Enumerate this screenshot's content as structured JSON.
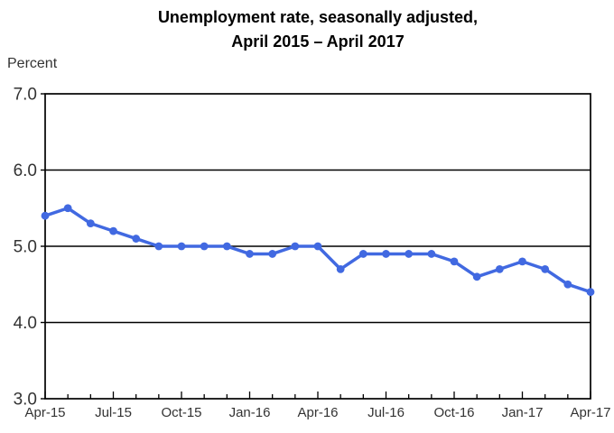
{
  "chart_data": {
    "type": "line",
    "title_line1": "Unemployment rate, seasonally adjusted,",
    "title_line2": "April 2015 – April 2017",
    "ylabel": "Percent",
    "x": [
      "Apr-15",
      "May-15",
      "Jun-15",
      "Jul-15",
      "Aug-15",
      "Sep-15",
      "Oct-15",
      "Nov-15",
      "Dec-15",
      "Jan-16",
      "Feb-16",
      "Mar-16",
      "Apr-16",
      "May-16",
      "Jun-16",
      "Jul-16",
      "Aug-16",
      "Sep-16",
      "Oct-16",
      "Nov-16",
      "Dec-16",
      "Jan-17",
      "Feb-17",
      "Mar-17",
      "Apr-17"
    ],
    "values": [
      5.4,
      5.5,
      5.3,
      5.2,
      5.1,
      5.0,
      5.0,
      5.0,
      5.0,
      4.9,
      4.9,
      5.0,
      5.0,
      4.7,
      4.9,
      4.9,
      4.9,
      4.9,
      4.8,
      4.6,
      4.7,
      4.8,
      4.7,
      4.5,
      4.4
    ],
    "x_tick_labels": [
      "Apr-15",
      "Jul-15",
      "Oct-15",
      "Jan-16",
      "Apr-16",
      "Jul-16",
      "Oct-16",
      "Jan-17",
      "Apr-17"
    ],
    "x_tick_label_step": 3,
    "y_ticks": [
      7.0,
      6.0,
      5.0,
      4.0,
      3.0
    ],
    "y_tick_labels": [
      "7.0",
      "6.0",
      "5.0",
      "4.0",
      "3.0"
    ],
    "ylim": [
      3.0,
      7.0
    ],
    "grid_values": [
      6.0,
      5.0,
      4.0
    ],
    "grid": "horizontal",
    "legend": "none",
    "line_color": "#4169E1",
    "marker": "circle",
    "axis_color": "#000000",
    "tick_label_color": "#333333"
  }
}
